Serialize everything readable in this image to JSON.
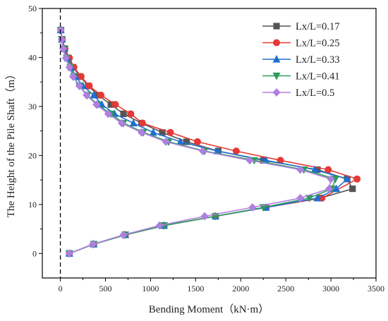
{
  "chart_data": {
    "type": "line",
    "xlabel": "Bending Moment（kN·m）",
    "ylabel": "The Height of the Pile Shaft（m）",
    "xlim": [
      -200,
      3500
    ],
    "ylim": [
      -5,
      50
    ],
    "xticks": [
      0,
      500,
      1000,
      1500,
      2000,
      2500,
      3000,
      3500
    ],
    "yticks": [
      0,
      10,
      20,
      30,
      40,
      50
    ],
    "grid": false,
    "reference_line": {
      "x": 0,
      "style": "dashed"
    },
    "legend_position": "top-right",
    "series": [
      {
        "name": "Lx/L=0.17",
        "color": "#555555",
        "marker": "square",
        "points": [
          [
            100,
            0
          ],
          [
            370,
            1.9
          ],
          [
            720,
            3.8
          ],
          [
            1150,
            5.7
          ],
          [
            1720,
            7.6
          ],
          [
            2280,
            9.4
          ],
          [
            2880,
            11.3
          ],
          [
            3240,
            13.2
          ],
          [
            3180,
            15.2
          ],
          [
            2850,
            17.1
          ],
          [
            2250,
            19.0
          ],
          [
            1750,
            20.9
          ],
          [
            1400,
            22.8
          ],
          [
            1130,
            24.7
          ],
          [
            900,
            26.6
          ],
          [
            700,
            28.5
          ],
          [
            560,
            30.4
          ],
          [
            420,
            32.3
          ],
          [
            310,
            34.2
          ],
          [
            220,
            36.1
          ],
          [
            140,
            38.0
          ],
          [
            90,
            39.9
          ],
          [
            50,
            41.8
          ],
          [
            20,
            43.7
          ],
          [
            5,
            45.6
          ]
        ]
      },
      {
        "name": "Lx/L=0.25",
        "color": "#e53935",
        "marker": "circle",
        "points": [
          [
            100,
            0
          ],
          [
            370,
            1.9
          ],
          [
            720,
            3.8
          ],
          [
            1150,
            5.7
          ],
          [
            1720,
            7.6
          ],
          [
            2280,
            9.4
          ],
          [
            2900,
            11.3
          ],
          [
            3290,
            15.2
          ],
          [
            2970,
            17.1
          ],
          [
            2440,
            19.0
          ],
          [
            1950,
            20.9
          ],
          [
            1520,
            22.8
          ],
          [
            1220,
            24.7
          ],
          [
            910,
            26.6
          ],
          [
            780,
            28.5
          ],
          [
            610,
            30.4
          ],
          [
            450,
            32.3
          ],
          [
            320,
            34.2
          ],
          [
            230,
            36.1
          ],
          [
            150,
            38.0
          ],
          [
            100,
            39.9
          ],
          [
            50,
            41.8
          ],
          [
            20,
            43.7
          ],
          [
            5,
            45.6
          ]
        ]
      },
      {
        "name": "Lx/L=0.33",
        "color": "#1f6fd1",
        "marker": "triangle-up",
        "points": [
          [
            100,
            0
          ],
          [
            370,
            1.9
          ],
          [
            720,
            3.8
          ],
          [
            1150,
            5.7
          ],
          [
            1720,
            7.6
          ],
          [
            2280,
            9.4
          ],
          [
            2850,
            11.3
          ],
          [
            3060,
            13.2
          ],
          [
            3180,
            15.2
          ],
          [
            2820,
            17.1
          ],
          [
            2280,
            19.0
          ],
          [
            1740,
            20.9
          ],
          [
            1330,
            22.8
          ],
          [
            1030,
            24.7
          ],
          [
            810,
            26.6
          ],
          [
            600,
            28.5
          ],
          [
            460,
            30.4
          ],
          [
            370,
            32.3
          ],
          [
            250,
            34.2
          ],
          [
            170,
            36.1
          ],
          [
            120,
            38.0
          ],
          [
            80,
            39.9
          ],
          [
            40,
            41.8
          ],
          [
            15,
            43.7
          ],
          [
            5,
            45.6
          ]
        ]
      },
      {
        "name": "Lx/L=0.41",
        "color": "#2e9c5a",
        "marker": "triangle-down",
        "points": [
          [
            100,
            0
          ],
          [
            370,
            1.9
          ],
          [
            720,
            3.8
          ],
          [
            1150,
            5.7
          ],
          [
            1720,
            7.6
          ],
          [
            2250,
            9.4
          ],
          [
            2760,
            11.3
          ],
          [
            3010,
            13.2
          ],
          [
            3050,
            15.2
          ],
          [
            2700,
            17.1
          ],
          [
            2150,
            19.0
          ],
          [
            1600,
            20.9
          ],
          [
            1200,
            22.8
          ],
          [
            920,
            24.7
          ],
          [
            700,
            26.6
          ],
          [
            560,
            28.5
          ],
          [
            410,
            30.4
          ],
          [
            300,
            32.3
          ],
          [
            210,
            34.2
          ],
          [
            150,
            36.1
          ],
          [
            110,
            38.0
          ],
          [
            70,
            39.9
          ],
          [
            40,
            41.8
          ],
          [
            15,
            43.7
          ],
          [
            5,
            45.6
          ]
        ]
      },
      {
        "name": "Lx/L=0.5",
        "color": "#b07fe0",
        "marker": "diamond",
        "points": [
          [
            100,
            0
          ],
          [
            360,
            1.9
          ],
          [
            700,
            3.8
          ],
          [
            1100,
            5.7
          ],
          [
            1600,
            7.6
          ],
          [
            2130,
            9.4
          ],
          [
            2660,
            11.3
          ],
          [
            2980,
            13.2
          ],
          [
            3000,
            15.2
          ],
          [
            2660,
            17.1
          ],
          [
            2100,
            19.0
          ],
          [
            1580,
            20.9
          ],
          [
            1170,
            22.8
          ],
          [
            900,
            24.7
          ],
          [
            680,
            26.6
          ],
          [
            530,
            28.5
          ],
          [
            400,
            30.4
          ],
          [
            290,
            32.3
          ],
          [
            210,
            34.2
          ],
          [
            140,
            36.1
          ],
          [
            100,
            38.0
          ],
          [
            60,
            39.9
          ],
          [
            30,
            41.8
          ],
          [
            15,
            43.7
          ],
          [
            5,
            45.6
          ]
        ]
      }
    ]
  }
}
